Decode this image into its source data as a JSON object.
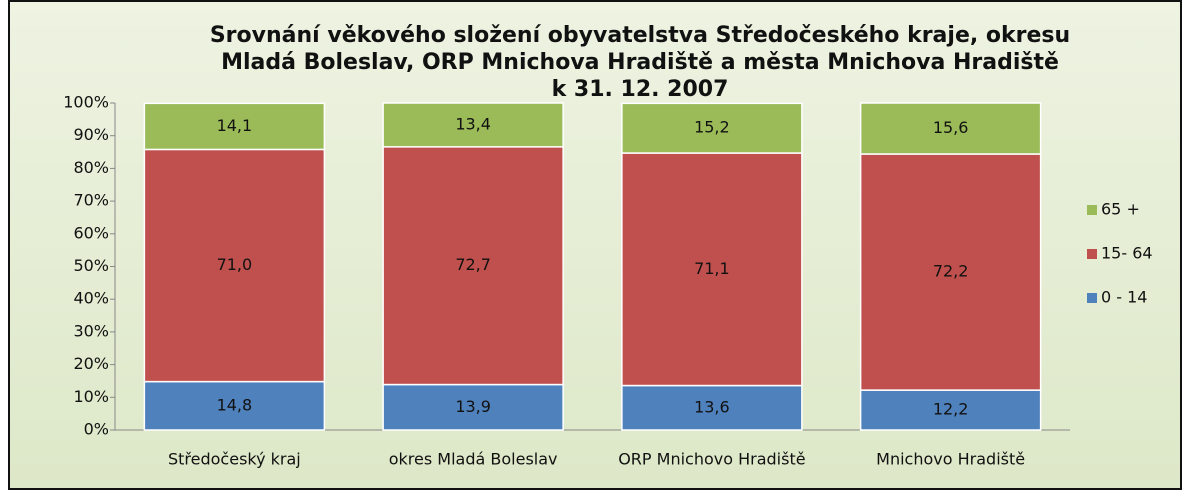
{
  "chart_data": {
    "type": "stacked_bar",
    "title": [
      "Srovnání věkového složení obyvatelstva  Středočeského kraje, okresu",
      "Mladá Boleslav,  ORP  Mnichova Hradiště a  města Mnichova Hradiště",
      "k 31. 12. 2007"
    ],
    "categories": [
      "Středočeský kraj",
      "okres Mladá Boleslav",
      "ORP Mnichovo Hradiště",
      "Mnichovo Hradiště"
    ],
    "series": [
      {
        "name": "0 - 14",
        "color": "#4f81bd",
        "values": [
          14.8,
          13.9,
          13.6,
          12.2
        ],
        "value_labels": [
          "14,8",
          "13,9",
          "13,6",
          "12,2"
        ]
      },
      {
        "name": "15- 64",
        "color": "#c0504d",
        "values": [
          71.0,
          72.7,
          71.1,
          72.2
        ],
        "value_labels": [
          "71,0",
          "72,7",
          "71,1",
          "72,2"
        ]
      },
      {
        "name": "65 +",
        "color": "#9bbb59",
        "values": [
          14.1,
          13.4,
          15.2,
          15.6
        ],
        "value_labels": [
          "14,1",
          "13,4",
          "15,2",
          "15,6"
        ]
      }
    ],
    "ylim": [
      0,
      100
    ],
    "yticks": [
      {
        "value": 0,
        "label": "0%"
      },
      {
        "value": 10,
        "label": "10%"
      },
      {
        "value": 20,
        "label": "20%"
      },
      {
        "value": 30,
        "label": "30%"
      },
      {
        "value": 40,
        "label": "40%"
      },
      {
        "value": 50,
        "label": "50%"
      },
      {
        "value": 60,
        "label": "60%"
      },
      {
        "value": 70,
        "label": "70%"
      },
      {
        "value": 80,
        "label": "80%"
      },
      {
        "value": 90,
        "label": "90%"
      },
      {
        "value": 100,
        "label": "100%"
      }
    ],
    "grid": false,
    "legend": "right"
  }
}
